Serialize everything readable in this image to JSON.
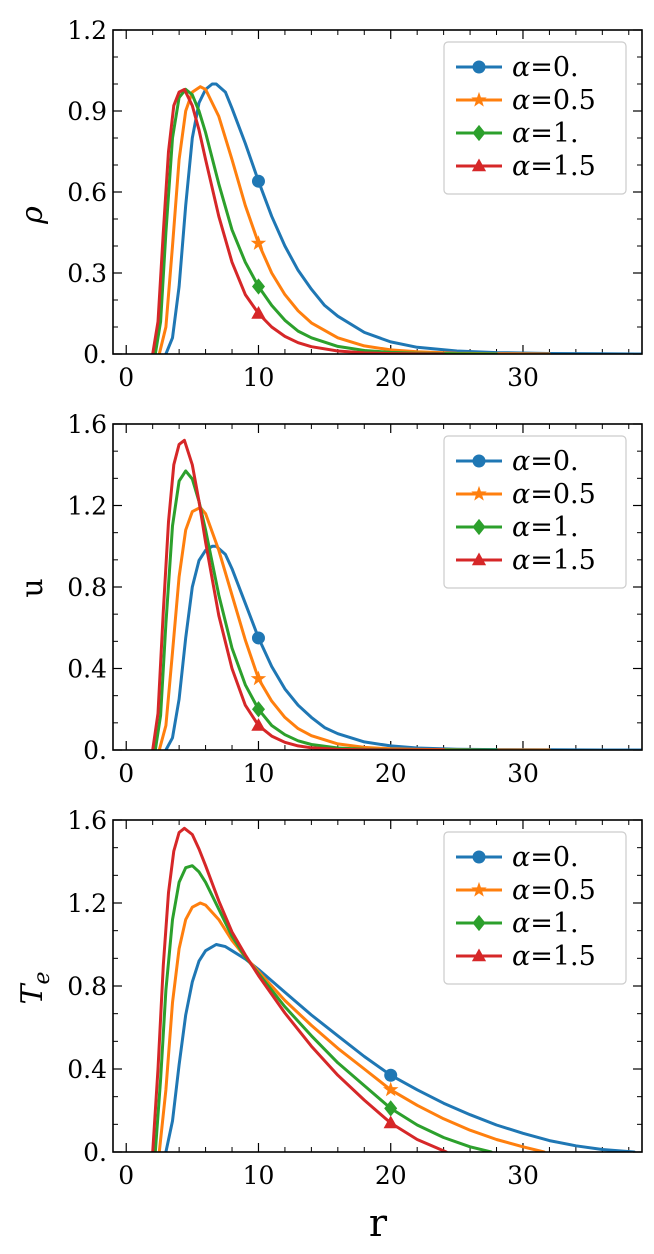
{
  "figure": {
    "x_axis_label": "r",
    "colors": {
      "alpha0": "#1f77b4",
      "alpha05": "#ff7f0e",
      "alpha1": "#2ca02c",
      "alpha15": "#d62728"
    }
  },
  "chart_data": [
    {
      "type": "line",
      "ylabel": "ρ",
      "ylabel_italic": true,
      "xlabel": "",
      "xlim": [
        -1,
        39
      ],
      "ylim": [
        0,
        1.2
      ],
      "xticks": [
        0,
        10,
        20,
        30
      ],
      "xtick_labels": [
        "0",
        "10",
        "20",
        "30"
      ],
      "yticks": [
        0,
        0.3,
        0.6,
        0.9,
        1.2
      ],
      "ytick_labels": [
        "0.",
        "0.3",
        "0.6",
        "0.9",
        "1.2"
      ],
      "legend_placement": "top-right",
      "series": [
        {
          "name": "α=0.",
          "color": "#1f77b4",
          "marker": "circle",
          "marker_x": 10,
          "marker_y": 0.64,
          "x": [
            3.0,
            3.5,
            4.0,
            4.5,
            5.0,
            5.5,
            6.0,
            6.5,
            6.8,
            7.5,
            8.0,
            9.0,
            10.0,
            11.0,
            12.0,
            13.0,
            14.0,
            15.0,
            16.0,
            18.0,
            20.0,
            22.0,
            25.0,
            28.0,
            32.0,
            36.0,
            39.0
          ],
          "y": [
            0.0,
            0.06,
            0.25,
            0.55,
            0.8,
            0.93,
            0.98,
            1.0,
            1.0,
            0.97,
            0.91,
            0.78,
            0.64,
            0.51,
            0.4,
            0.31,
            0.24,
            0.18,
            0.14,
            0.08,
            0.045,
            0.025,
            0.011,
            0.005,
            0.002,
            0.001,
            0.0
          ]
        },
        {
          "name": "α=0.5",
          "color": "#ff7f0e",
          "marker": "star",
          "marker_x": 10,
          "marker_y": 0.41,
          "x": [
            2.5,
            3.0,
            3.5,
            4.0,
            4.5,
            5.0,
            5.6,
            6.0,
            7.0,
            8.0,
            9.0,
            10.0,
            11.0,
            12.0,
            13.0,
            14.0,
            16.0,
            18.0,
            20.0,
            22.0,
            25.0,
            28.0,
            32.0
          ],
          "y": [
            0.0,
            0.1,
            0.4,
            0.72,
            0.9,
            0.97,
            0.99,
            0.98,
            0.88,
            0.72,
            0.55,
            0.41,
            0.3,
            0.22,
            0.16,
            0.115,
            0.06,
            0.03,
            0.015,
            0.008,
            0.003,
            0.001,
            0.0
          ]
        },
        {
          "name": "α=1.",
          "color": "#2ca02c",
          "marker": "diamond",
          "marker_x": 10,
          "marker_y": 0.25,
          "x": [
            2.2,
            2.6,
            3.0,
            3.5,
            4.0,
            4.5,
            5.0,
            5.5,
            6.0,
            7.0,
            8.0,
            9.0,
            10.0,
            11.0,
            12.0,
            13.0,
            14.0,
            16.0,
            18.0,
            20.0,
            22.0,
            25.0,
            28.0
          ],
          "y": [
            0.0,
            0.12,
            0.45,
            0.8,
            0.95,
            0.98,
            0.96,
            0.9,
            0.82,
            0.63,
            0.46,
            0.34,
            0.25,
            0.18,
            0.125,
            0.085,
            0.06,
            0.028,
            0.013,
            0.006,
            0.003,
            0.001,
            0.0
          ]
        },
        {
          "name": "α=1.5",
          "color": "#d62728",
          "marker": "triangle",
          "marker_x": 10,
          "marker_y": 0.15,
          "x": [
            2.0,
            2.4,
            2.8,
            3.2,
            3.6,
            4.0,
            4.4,
            5.0,
            5.5,
            6.0,
            7.0,
            8.0,
            9.0,
            10.0,
            11.0,
            12.0,
            13.0,
            14.0,
            16.0,
            18.0,
            20.0,
            22.0,
            24.0
          ],
          "y": [
            0.0,
            0.12,
            0.45,
            0.75,
            0.92,
            0.97,
            0.98,
            0.92,
            0.83,
            0.72,
            0.51,
            0.34,
            0.22,
            0.15,
            0.1,
            0.065,
            0.042,
            0.027,
            0.011,
            0.004,
            0.0015,
            0.0005,
            0.0
          ]
        }
      ]
    },
    {
      "type": "line",
      "ylabel": "u",
      "ylabel_italic": false,
      "xlabel": "",
      "xlim": [
        -1,
        39
      ],
      "ylim": [
        0,
        1.6
      ],
      "xticks": [
        0,
        10,
        20,
        30
      ],
      "xtick_labels": [
        "0",
        "10",
        "20",
        "30"
      ],
      "yticks": [
        0,
        0.4,
        0.8,
        1.2,
        1.6
      ],
      "ytick_labels": [
        "0.",
        "0.4",
        "0.8",
        "1.2",
        "1.6"
      ],
      "legend_placement": "top-right",
      "series": [
        {
          "name": "α=0.",
          "color": "#1f77b4",
          "marker": "circle",
          "marker_x": 10,
          "marker_y": 0.55,
          "x": [
            3.0,
            3.5,
            4.0,
            4.5,
            5.0,
            5.5,
            6.0,
            6.5,
            6.8,
            7.5,
            8.0,
            9.0,
            10.0,
            11.0,
            12.0,
            13.0,
            14.0,
            15.0,
            16.0,
            18.0,
            20.0,
            22.0,
            25.0,
            28.0,
            32.0,
            36.0,
            39.0
          ],
          "y": [
            0.0,
            0.06,
            0.25,
            0.55,
            0.8,
            0.93,
            0.98,
            1.0,
            1.0,
            0.96,
            0.89,
            0.72,
            0.55,
            0.41,
            0.3,
            0.22,
            0.16,
            0.11,
            0.08,
            0.04,
            0.02,
            0.01,
            0.004,
            0.002,
            0.001,
            0.0,
            0.0
          ]
        },
        {
          "name": "α=0.5",
          "color": "#ff7f0e",
          "marker": "star",
          "marker_x": 10,
          "marker_y": 0.35,
          "x": [
            2.5,
            3.0,
            3.5,
            4.0,
            4.5,
            5.0,
            5.6,
            6.0,
            7.0,
            8.0,
            9.0,
            10.0,
            11.0,
            12.0,
            13.0,
            14.0,
            16.0,
            18.0,
            20.0,
            22.0,
            25.0,
            28.0,
            32.0
          ],
          "y": [
            0.0,
            0.12,
            0.48,
            0.85,
            1.08,
            1.17,
            1.19,
            1.16,
            0.98,
            0.76,
            0.54,
            0.35,
            0.24,
            0.16,
            0.105,
            0.07,
            0.03,
            0.013,
            0.006,
            0.003,
            0.001,
            0.0,
            0.0
          ]
        },
        {
          "name": "α=1.",
          "color": "#2ca02c",
          "marker": "diamond",
          "marker_x": 10,
          "marker_y": 0.2,
          "x": [
            2.2,
            2.6,
            3.0,
            3.5,
            4.0,
            4.5,
            5.0,
            5.5,
            6.0,
            7.0,
            8.0,
            9.0,
            10.0,
            11.0,
            12.0,
            13.0,
            14.0,
            16.0,
            18.0,
            20.0,
            22.0,
            25.0,
            28.0
          ],
          "y": [
            0.0,
            0.17,
            0.62,
            1.1,
            1.32,
            1.37,
            1.33,
            1.22,
            1.08,
            0.76,
            0.5,
            0.32,
            0.2,
            0.12,
            0.075,
            0.045,
            0.027,
            0.01,
            0.004,
            0.0015,
            0.0005,
            0.0,
            0.0
          ]
        },
        {
          "name": "α=1.5",
          "color": "#d62728",
          "marker": "triangle",
          "marker_x": 10,
          "marker_y": 0.12,
          "x": [
            2.0,
            2.4,
            2.8,
            3.2,
            3.6,
            4.0,
            4.4,
            5.0,
            5.5,
            6.0,
            7.0,
            8.0,
            9.0,
            10.0,
            11.0,
            12.0,
            13.0,
            14.0,
            16.0,
            18.0,
            20.0,
            22.0,
            24.0
          ],
          "y": [
            0.0,
            0.18,
            0.68,
            1.12,
            1.4,
            1.5,
            1.52,
            1.4,
            1.22,
            1.02,
            0.66,
            0.4,
            0.22,
            0.12,
            0.068,
            0.038,
            0.02,
            0.011,
            0.003,
            0.001,
            0.0,
            0.0,
            0.0
          ]
        }
      ]
    },
    {
      "type": "line",
      "ylabel": "T",
      "ylabel_subscript": "e",
      "ylabel_italic": true,
      "xlabel": "r",
      "xlim": [
        -1,
        39
      ],
      "ylim": [
        0,
        1.6
      ],
      "xticks": [
        0,
        10,
        20,
        30
      ],
      "xtick_labels": [
        "0",
        "10",
        "20",
        "30"
      ],
      "yticks": [
        0,
        0.4,
        0.8,
        1.2,
        1.6
      ],
      "ytick_labels": [
        "0.",
        "0.4",
        "0.8",
        "1.2",
        "1.6"
      ],
      "legend_placement": "top-right",
      "series": [
        {
          "name": "α=0.",
          "color": "#1f77b4",
          "marker": "circle",
          "marker_x": 20,
          "marker_y": 0.37,
          "x": [
            3.0,
            3.5,
            4.0,
            4.5,
            5.0,
            5.5,
            6.0,
            6.8,
            7.5,
            8.0,
            9.0,
            10.0,
            12.0,
            14.0,
            16.0,
            18.0,
            20.0,
            22.0,
            24.0,
            26.0,
            28.0,
            30.0,
            32.0,
            34.0,
            36.0,
            38.4
          ],
          "y": [
            0.0,
            0.15,
            0.42,
            0.66,
            0.82,
            0.92,
            0.97,
            1.0,
            0.99,
            0.97,
            0.93,
            0.88,
            0.77,
            0.66,
            0.56,
            0.46,
            0.37,
            0.3,
            0.235,
            0.18,
            0.13,
            0.09,
            0.055,
            0.03,
            0.012,
            0.0
          ]
        },
        {
          "name": "α=0.5",
          "color": "#ff7f0e",
          "marker": "star",
          "marker_x": 20,
          "marker_y": 0.3,
          "x": [
            2.5,
            3.0,
            3.5,
            4.0,
            4.5,
            5.0,
            5.6,
            6.0,
            7.0,
            8.0,
            9.0,
            10.0,
            12.0,
            14.0,
            16.0,
            18.0,
            20.0,
            22.0,
            24.0,
            26.0,
            28.0,
            30.0,
            31.6
          ],
          "y": [
            0.0,
            0.3,
            0.72,
            0.98,
            1.12,
            1.18,
            1.2,
            1.19,
            1.12,
            1.02,
            0.94,
            0.87,
            0.73,
            0.61,
            0.5,
            0.4,
            0.3,
            0.225,
            0.16,
            0.105,
            0.06,
            0.025,
            0.0
          ]
        },
        {
          "name": "α=1.",
          "color": "#2ca02c",
          "marker": "diamond",
          "marker_x": 20,
          "marker_y": 0.21,
          "x": [
            2.2,
            2.6,
            3.0,
            3.5,
            4.0,
            4.5,
            5.0,
            5.5,
            6.0,
            7.0,
            8.0,
            9.0,
            10.0,
            12.0,
            14.0,
            16.0,
            18.0,
            20.0,
            22.0,
            24.0,
            26.0,
            27.6
          ],
          "y": [
            0.0,
            0.35,
            0.78,
            1.12,
            1.3,
            1.37,
            1.38,
            1.35,
            1.3,
            1.17,
            1.04,
            0.94,
            0.86,
            0.7,
            0.56,
            0.43,
            0.32,
            0.21,
            0.13,
            0.07,
            0.025,
            0.0
          ]
        },
        {
          "name": "α=1.5",
          "color": "#d62728",
          "marker": "triangle",
          "marker_x": 20,
          "marker_y": 0.14,
          "x": [
            2.0,
            2.4,
            2.8,
            3.2,
            3.6,
            4.0,
            4.4,
            5.0,
            5.5,
            6.0,
            7.0,
            8.0,
            9.0,
            10.0,
            12.0,
            14.0,
            16.0,
            18.0,
            20.0,
            22.0,
            24.2
          ],
          "y": [
            0.0,
            0.4,
            0.9,
            1.25,
            1.45,
            1.54,
            1.56,
            1.53,
            1.46,
            1.38,
            1.21,
            1.06,
            0.95,
            0.85,
            0.67,
            0.51,
            0.37,
            0.25,
            0.14,
            0.06,
            0.0
          ]
        }
      ]
    }
  ]
}
